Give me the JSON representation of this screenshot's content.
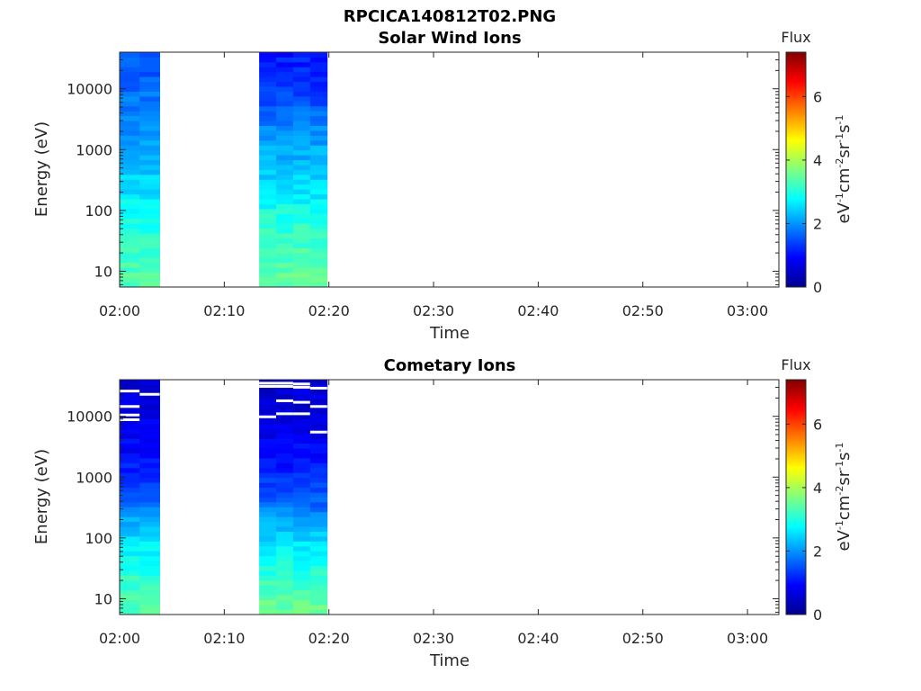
{
  "figure_title": "RPCICA140812T02.PNG",
  "colors": {
    "axis": "#262626",
    "title": "#000000",
    "background": "#ffffff"
  },
  "chart_data": [
    {
      "type": "heatmap",
      "title": "Solar Wind Ions",
      "xlabel": "Time",
      "ylabel": "Energy (eV)",
      "y_scale": "log",
      "x_range": [
        "02:00",
        "03:03"
      ],
      "x_ticks": [
        "02:00",
        "02:10",
        "02:20",
        "02:30",
        "02:40",
        "02:50",
        "03:00"
      ],
      "y_range": [
        5.5,
        40000
      ],
      "y_ticks": [
        10,
        100,
        1000,
        10000
      ],
      "y_tick_labels": [
        "10",
        "100",
        "1000",
        "10000"
      ],
      "colorbar": {
        "label": "Flux",
        "unit_base": "eV",
        "range": [
          0,
          7.4
        ],
        "ticks": [
          "0",
          "2",
          "4",
          "6"
        ],
        "colormap": "jet"
      },
      "data_blocks": [
        {
          "start": "02:00",
          "end": "02:03:50",
          "columns": 2,
          "profile": [
            [
              8,
              3.4
            ],
            [
              30,
              3.1
            ],
            [
              80,
              2.9
            ],
            [
              200,
              2.6
            ],
            [
              600,
              2.3
            ],
            [
              2000,
              2.0
            ],
            [
              6000,
              1.8
            ],
            [
              15000,
              1.6
            ],
            [
              40000,
              1.5
            ]
          ],
          "gaps": []
        },
        {
          "start": "02:13:20",
          "end": "02:19:50",
          "columns": 4,
          "profile": [
            [
              8,
              3.5
            ],
            [
              30,
              3.2
            ],
            [
              80,
              3.0
            ],
            [
              200,
              2.6
            ],
            [
              600,
              2.3
            ],
            [
              2000,
              2.0
            ],
            [
              6000,
              1.5
            ],
            [
              15000,
              1.2
            ],
            [
              40000,
              1.1
            ]
          ],
          "gaps": []
        }
      ]
    },
    {
      "type": "heatmap",
      "title": "Cometary Ions",
      "xlabel": "Time",
      "ylabel": "Energy (eV)",
      "y_scale": "log",
      "x_range": [
        "02:00",
        "03:03"
      ],
      "x_ticks": [
        "02:00",
        "02:10",
        "02:20",
        "02:30",
        "02:40",
        "02:50",
        "03:00"
      ],
      "y_range": [
        5.5,
        40000
      ],
      "y_ticks": [
        10,
        100,
        1000,
        10000
      ],
      "y_tick_labels": [
        "10",
        "100",
        "1000",
        "10000"
      ],
      "colorbar": {
        "label": "Flux",
        "unit_base": "eV",
        "range": [
          0,
          7.4
        ],
        "ticks": [
          "0",
          "2",
          "4",
          "6"
        ],
        "colormap": "jet"
      },
      "data_blocks": [
        {
          "start": "02:00",
          "end": "02:03:50",
          "columns": 2,
          "profile": [
            [
              8,
              3.4
            ],
            [
              30,
              3.0
            ],
            [
              80,
              2.6
            ],
            [
              200,
              2.1
            ],
            [
              500,
              1.6
            ],
            [
              1500,
              1.1
            ],
            [
              5000,
              0.8
            ],
            [
              20000,
              0.7
            ],
            [
              40000,
              0.6
            ]
          ],
          "gaps": [
            [
              0,
              26000
            ],
            [
              1,
              23000
            ],
            [
              0,
              14500
            ],
            [
              0,
              10500
            ],
            [
              0,
              8800
            ]
          ]
        },
        {
          "start": "02:13:20",
          "end": "02:19:50",
          "columns": 4,
          "profile": [
            [
              8,
              3.5
            ],
            [
              30,
              3.0
            ],
            [
              80,
              2.6
            ],
            [
              200,
              2.1
            ],
            [
              500,
              1.5
            ],
            [
              1500,
              1.1
            ],
            [
              5000,
              0.8
            ],
            [
              20000,
              0.6
            ],
            [
              40000,
              0.6
            ]
          ],
          "gaps": [
            [
              0,
              35000
            ],
            [
              1,
              35000
            ],
            [
              2,
              34000
            ],
            [
              0,
              31000
            ],
            [
              1,
              31000
            ],
            [
              2,
              30000
            ],
            [
              3,
              29000
            ],
            [
              1,
              18000
            ],
            [
              2,
              17000
            ],
            [
              3,
              14500
            ],
            [
              0,
              9800
            ],
            [
              1,
              11000
            ],
            [
              2,
              11000
            ],
            [
              3,
              5500
            ]
          ]
        }
      ]
    }
  ]
}
